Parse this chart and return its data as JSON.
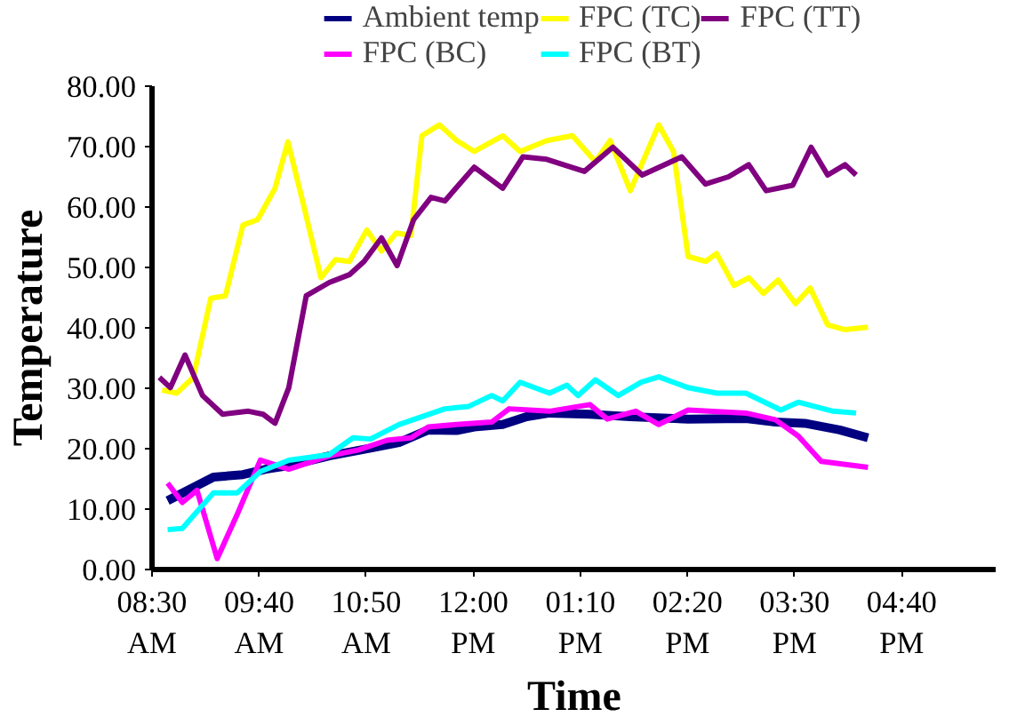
{
  "chart_data": {
    "type": "line",
    "xlabel": "Time",
    "ylabel": "Temperature",
    "xlim": [
      8.5,
      17.7
    ],
    "ylim": [
      0,
      80
    ],
    "xticks": [
      {
        "value": 8.5,
        "label": "08:30\nAM"
      },
      {
        "value": 9.667,
        "label": "09:40\nAM"
      },
      {
        "value": 10.833,
        "label": "10:50\nAM"
      },
      {
        "value": 12,
        "label": "12:00\nPM"
      },
      {
        "value": 13.167,
        "label": "01:10\nPM"
      },
      {
        "value": 14.333,
        "label": "02:20\nPM"
      },
      {
        "value": 15.5,
        "label": "03:30\nPM"
      },
      {
        "value": 16.667,
        "label": "04:40\nPM"
      }
    ],
    "yticks": [
      {
        "value": 0,
        "label": "0.00"
      },
      {
        "value": 10,
        "label": "10.00"
      },
      {
        "value": 20,
        "label": "20.00"
      },
      {
        "value": 30,
        "label": "30.00"
      },
      {
        "value": 40,
        "label": "40.00"
      },
      {
        "value": 50,
        "label": "50.00"
      },
      {
        "value": 60,
        "label": "60.00"
      },
      {
        "value": 70,
        "label": "70.00"
      },
      {
        "value": 80,
        "label": "80.00"
      }
    ],
    "grid": false,
    "legend": "top",
    "line_style": "solid",
    "series": [
      {
        "name": "Ambient temp",
        "color": "#000080",
        "x": [
          8.67,
          9.17,
          9.49,
          9.74,
          9.99,
          10.43,
          10.88,
          11.19,
          11.51,
          11.82,
          12.01,
          12.32,
          12.58,
          12.83,
          13.27,
          13.71,
          14.34,
          14.97,
          15.29,
          15.61,
          15.99,
          16.3
        ],
        "values": [
          11.4,
          15.3,
          15.7,
          16.6,
          17.2,
          18.8,
          20.1,
          21.0,
          23.1,
          23.0,
          23.6,
          24.0,
          25.3,
          25.9,
          25.7,
          25.3,
          24.9,
          25.0,
          24.4,
          24.2,
          23.1,
          21.8
        ]
      },
      {
        "name": "FPC (BC)",
        "color": "#ff00ff",
        "x": [
          8.67,
          8.83,
          8.99,
          9.21,
          9.43,
          9.68,
          9.99,
          10.43,
          10.75,
          11.06,
          11.32,
          11.51,
          11.82,
          12.2,
          12.39,
          12.83,
          13.27,
          13.46,
          13.77,
          14.02,
          14.34,
          14.97,
          15.29,
          15.54,
          15.79,
          16.3
        ],
        "values": [
          14.3,
          11.1,
          13.1,
          1.8,
          9.2,
          18.1,
          16.6,
          18.8,
          19.8,
          21.4,
          21.8,
          23.6,
          24.0,
          24.4,
          26.6,
          26.2,
          27.3,
          24.9,
          26.2,
          24.0,
          26.4,
          25.9,
          24.8,
          22.1,
          17.9,
          16.9
        ]
      },
      {
        "name": "FPC (TC)",
        "color": "#ffff00",
        "x": [
          8.61,
          8.77,
          8.95,
          9.14,
          9.3,
          9.49,
          9.65,
          9.84,
          9.98,
          10.15,
          10.34,
          10.5,
          10.65,
          10.84,
          11.0,
          11.16,
          11.32,
          11.44,
          11.63,
          11.82,
          12.01,
          12.32,
          12.51,
          12.8,
          13.08,
          13.33,
          13.49,
          13.71,
          14.02,
          14.18,
          14.34,
          14.53,
          14.65,
          14.84,
          15.0,
          15.16,
          15.32,
          15.51,
          15.67,
          15.86,
          16.05,
          16.3
        ],
        "values": [
          29.7,
          29.2,
          31.8,
          44.9,
          45.3,
          57.0,
          57.9,
          63.1,
          70.8,
          60.4,
          48.3,
          51.3,
          51.0,
          56.2,
          52.7,
          55.7,
          55.3,
          71.8,
          73.6,
          71.0,
          69.2,
          71.8,
          69.2,
          71.0,
          71.8,
          67.5,
          71.0,
          62.7,
          73.6,
          69.2,
          51.8,
          51.0,
          52.3,
          47.0,
          48.3,
          45.7,
          47.9,
          44.0,
          46.6,
          40.5,
          39.7,
          40.1
        ]
      },
      {
        "name": "FPC (BT)",
        "color": "#00ffff",
        "x": [
          8.67,
          8.83,
          9.17,
          9.43,
          9.68,
          9.99,
          10.43,
          10.69,
          10.88,
          11.19,
          11.69,
          11.95,
          12.2,
          12.32,
          12.51,
          12.83,
          13.02,
          13.14,
          13.33,
          13.58,
          13.83,
          14.02,
          14.34,
          14.65,
          14.97,
          15.35,
          15.54,
          15.92,
          16.17
        ],
        "values": [
          6.6,
          6.8,
          12.7,
          12.7,
          16.2,
          18.1,
          19.0,
          21.8,
          21.6,
          24.0,
          26.6,
          27.0,
          28.8,
          27.9,
          31.0,
          29.2,
          30.5,
          28.8,
          31.4,
          28.8,
          31.0,
          31.9,
          30.1,
          29.2,
          29.2,
          26.4,
          27.7,
          26.2,
          25.9
        ]
      },
      {
        "name": "FPC (TT)",
        "color": "#800080",
        "x": [
          8.58,
          8.7,
          8.86,
          9.05,
          9.27,
          9.55,
          9.71,
          9.84,
          9.99,
          10.18,
          10.43,
          10.65,
          10.81,
          11.0,
          11.17,
          11.35,
          11.54,
          11.69,
          12.01,
          12.32,
          12.54,
          12.8,
          13.21,
          13.52,
          13.84,
          14.27,
          14.53,
          14.78,
          15.0,
          15.19,
          15.48,
          15.68,
          15.86,
          16.05,
          16.17
        ],
        "values": [
          31.8,
          30.1,
          35.5,
          28.8,
          25.7,
          26.2,
          25.7,
          24.2,
          30.1,
          45.3,
          47.5,
          48.8,
          51.0,
          54.9,
          50.3,
          57.9,
          61.6,
          61.0,
          66.6,
          63.1,
          68.3,
          67.9,
          65.9,
          69.9,
          65.3,
          68.3,
          63.8,
          65.0,
          67.0,
          62.7,
          63.6,
          69.9,
          65.3,
          67.0,
          65.3
        ]
      }
    ]
  }
}
